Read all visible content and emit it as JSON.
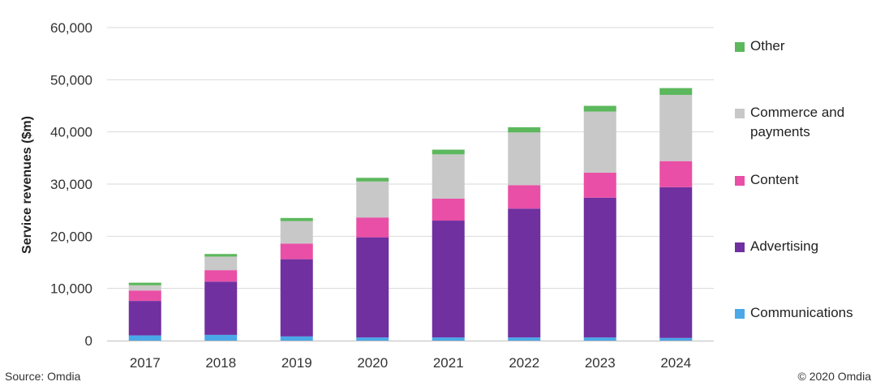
{
  "chart_data": {
    "type": "bar",
    "stacked": true,
    "title": "",
    "xlabel": "",
    "ylabel": "Service revenues ($m)",
    "ylim": [
      0,
      60000
    ],
    "yticks": [
      0,
      10000,
      20000,
      30000,
      40000,
      50000,
      60000
    ],
    "ytick_labels": [
      "0",
      "10,000",
      "20,000",
      "30,000",
      "40,000",
      "50,000",
      "60,000"
    ],
    "grid": true,
    "legend_position": "right",
    "categories": [
      "2017",
      "2018",
      "2019",
      "2020",
      "2021",
      "2022",
      "2023",
      "2024"
    ],
    "series": [
      {
        "name": "Communications",
        "color": "#4aa8e8",
        "values": [
          1000,
          1100,
          800,
          600,
          600,
          600,
          600,
          500
        ]
      },
      {
        "name": "Advertising",
        "color": "#7030a0",
        "values": [
          6600,
          10200,
          14800,
          19200,
          22400,
          24700,
          26800,
          28900
        ]
      },
      {
        "name": "Content",
        "color": "#e94fa6",
        "values": [
          2000,
          2200,
          3000,
          3800,
          4200,
          4500,
          4800,
          5000
        ]
      },
      {
        "name": "Commerce and payments",
        "color": "#c8c8c8",
        "values": [
          1000,
          2600,
          4300,
          6900,
          8500,
          10100,
          11700,
          12700
        ]
      },
      {
        "name": "Other",
        "color": "#5cb85c",
        "values": [
          500,
          500,
          600,
          700,
          900,
          1000,
          1100,
          1300
        ]
      }
    ]
  },
  "legend": {
    "items": [
      {
        "label": "Other",
        "color": "#5cb85c"
      },
      {
        "label": "Commerce and payments",
        "color": "#c8c8c8"
      },
      {
        "label": "Content",
        "color": "#e94fa6"
      },
      {
        "label": "Advertising",
        "color": "#7030a0"
      },
      {
        "label": "Communications",
        "color": "#4aa8e8"
      }
    ]
  },
  "footer": {
    "source": "Source: Omdia",
    "copyright": "© 2020 Omdia"
  }
}
